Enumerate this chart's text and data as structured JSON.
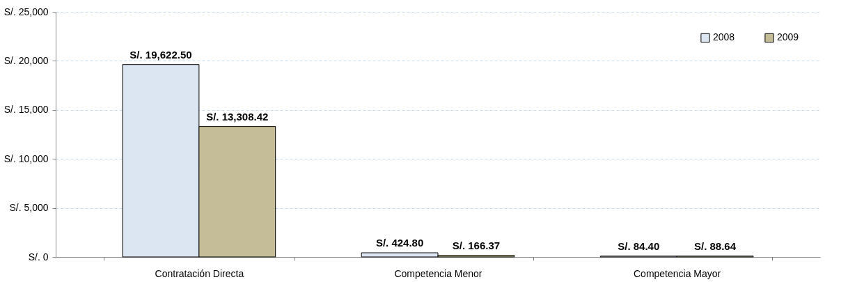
{
  "chart_data": {
    "type": "bar",
    "categories": [
      "Contratación Directa",
      "Competencia Menor",
      "Competencia Mayor"
    ],
    "series": [
      {
        "name": "2008",
        "color": "#dce6f2",
        "values": [
          19622.5,
          424.8,
          84.4
        ],
        "value_labels": [
          "S/. 19,622.50",
          "S/. 424.80",
          "S/. 84.40"
        ]
      },
      {
        "name": "2009",
        "color": "#c4bd97",
        "values": [
          13308.42,
          166.37,
          88.64
        ],
        "value_labels": [
          "S/. 13,308.42",
          "S/. 166.37",
          "S/. 88.64"
        ]
      }
    ],
    "ylim": [
      0,
      25000
    ],
    "yticks": [
      {
        "value": 0,
        "label": "S/. 0"
      },
      {
        "value": 5000,
        "label": "S/. 5,000"
      },
      {
        "value": 10000,
        "label": "S/. 10,000"
      },
      {
        "value": 15000,
        "label": "S/. 15,000"
      },
      {
        "value": 20000,
        "label": "S/. 20,000"
      },
      {
        "value": 25000,
        "label": "S/. 25,000"
      }
    ],
    "grid": "y",
    "legend": "top right"
  }
}
